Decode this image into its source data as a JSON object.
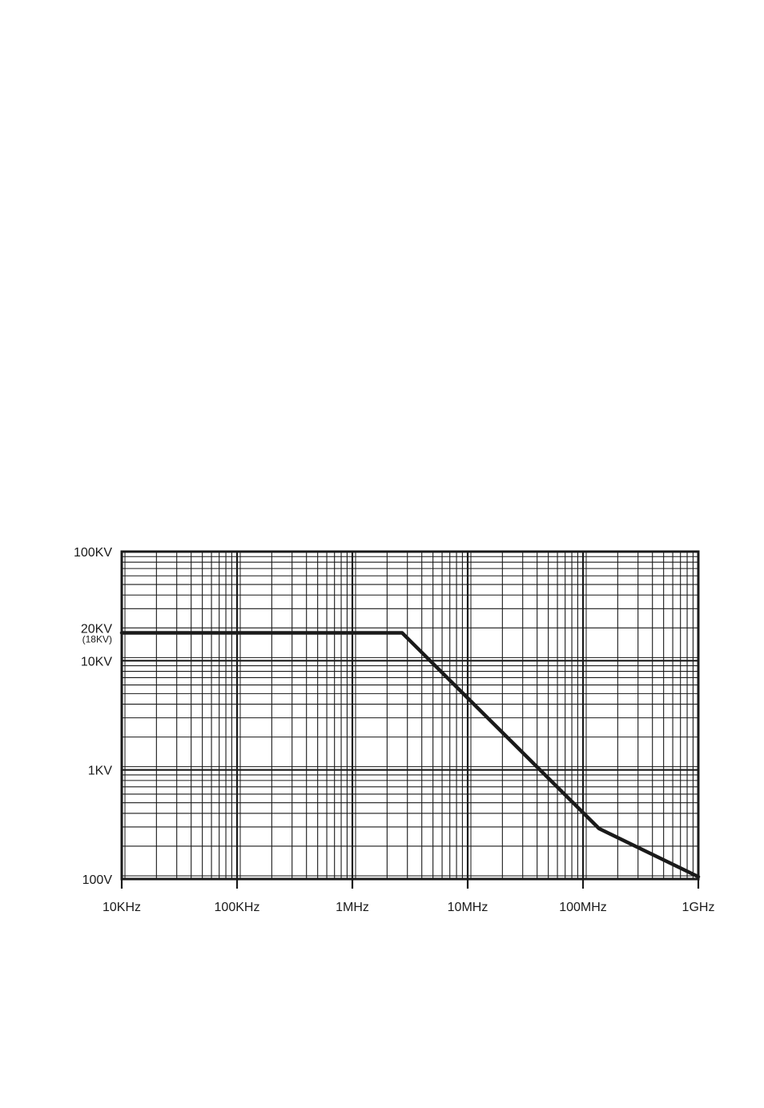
{
  "chart_data": {
    "type": "line",
    "title": "",
    "xlabel": "",
    "ylabel": "",
    "x_scale": "log",
    "y_scale": "log",
    "xlim": [
      10000,
      1000000000
    ],
    "ylim": [
      100,
      100000
    ],
    "grid": true,
    "x_ticks": [
      {
        "value": 10000,
        "label": "10KHz"
      },
      {
        "value": 100000,
        "label": "100KHz"
      },
      {
        "value": 1000000,
        "label": "1MHz"
      },
      {
        "value": 10000000,
        "label": "10MHz"
      },
      {
        "value": 100000000,
        "label": "100MHz"
      },
      {
        "value": 1000000000,
        "label": "1GHz"
      }
    ],
    "y_ticks": [
      {
        "value": 100,
        "label": "100V"
      },
      {
        "value": 1000,
        "label": "1KV"
      },
      {
        "value": 10000,
        "label": "10KV"
      },
      {
        "value": 20000,
        "label": "20KV"
      },
      {
        "value": 100000,
        "label": "100KV"
      }
    ],
    "y_annotation": {
      "value": 18000,
      "label": "(18KV)"
    },
    "series": [
      {
        "x": [
          10000,
          2700000,
          138000000,
          1000000000
        ],
        "y": [
          18000,
          18000,
          290,
          105
        ]
      }
    ]
  }
}
